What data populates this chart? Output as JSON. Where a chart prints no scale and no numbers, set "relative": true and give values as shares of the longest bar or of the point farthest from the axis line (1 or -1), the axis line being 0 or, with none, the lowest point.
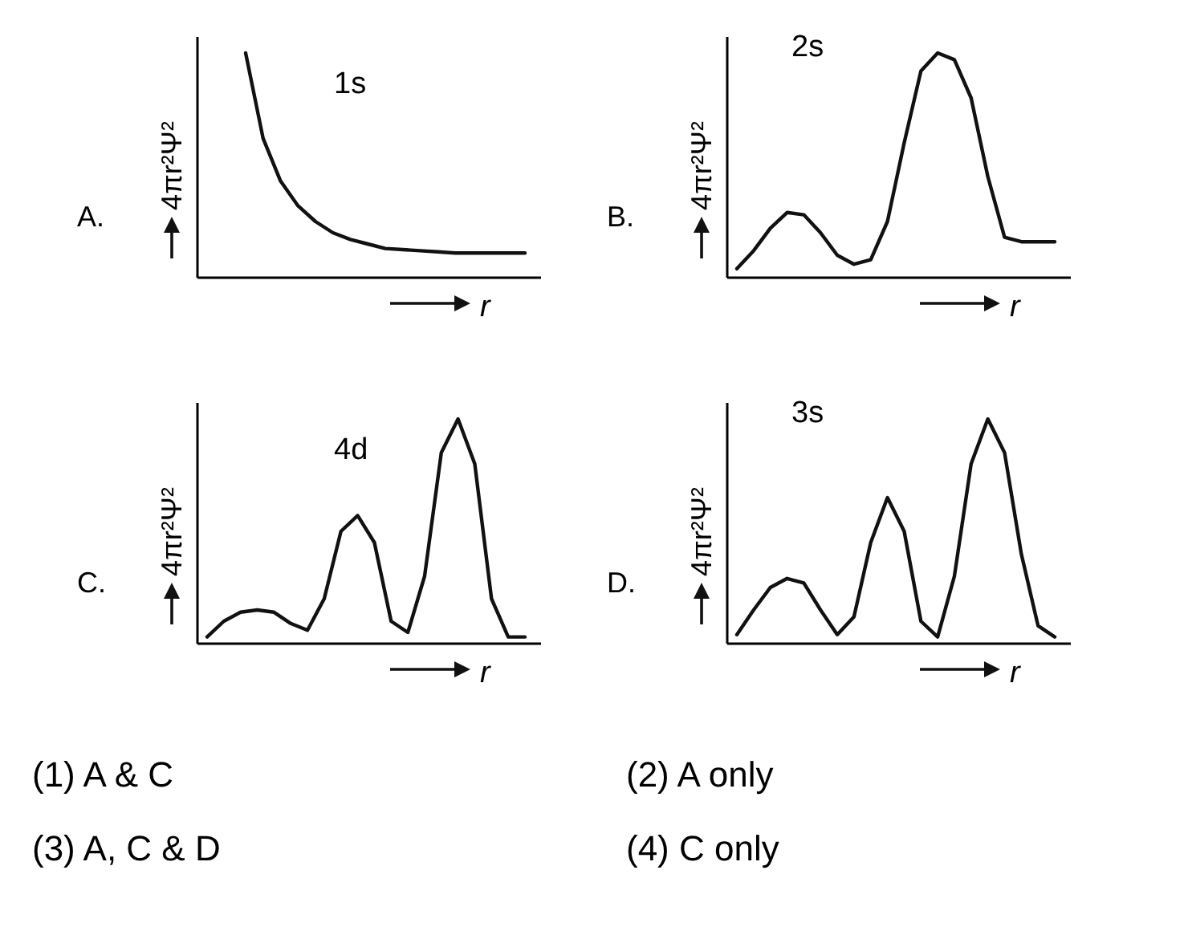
{
  "chart_data": [
    {
      "type": "line",
      "title": "1s",
      "xlabel": "r",
      "ylabel": "4πr²Ψ²",
      "annotations": [
        "A."
      ],
      "relative": true,
      "categories": [
        null,
        null,
        null,
        null,
        null,
        null,
        null,
        null,
        null,
        null,
        null,
        null,
        null,
        null,
        null,
        null,
        null
      ],
      "series": [
        {
          "color": "#111111",
          "values": [
            1,
            0.62,
            0.43,
            0.32,
            0.25,
            0.2,
            0.17,
            0.15,
            0.13,
            0.125,
            0.12,
            0.115,
            0.11,
            0.11,
            0.11,
            0.11,
            0.11
          ]
        }
      ]
    },
    {
      "type": "line",
      "title": "2s",
      "xlabel": "r",
      "ylabel": "4πr²Ψ²",
      "annotations": [
        "B."
      ],
      "relative": true,
      "categories": [
        null,
        null,
        null,
        null,
        null,
        null,
        null,
        null,
        null,
        null,
        null,
        null,
        null,
        null,
        null,
        null,
        null,
        null,
        null,
        null
      ],
      "series": [
        {
          "color": "#111111",
          "values": [
            0.04,
            0.12,
            0.22,
            0.29,
            0.28,
            0.2,
            0.1,
            0.06,
            0.08,
            0.25,
            0.6,
            0.92,
            1,
            0.97,
            0.8,
            0.45,
            0.18,
            0.16,
            0.16,
            0.16
          ]
        }
      ]
    },
    {
      "type": "line",
      "title": "4d",
      "xlabel": "r",
      "ylabel": "4πr²Ψ²",
      "annotations": [
        "C."
      ],
      "relative": true,
      "categories": [
        null,
        null,
        null,
        null,
        null,
        null,
        null,
        null,
        null,
        null,
        null,
        null,
        null,
        null,
        null,
        null,
        null,
        null,
        null,
        null
      ],
      "series": [
        {
          "color": "#111111",
          "values": [
            0.03,
            0.1,
            0.14,
            0.15,
            0.14,
            0.09,
            0.06,
            0.2,
            0.5,
            0.57,
            0.45,
            0.1,
            0.05,
            0.3,
            0.85,
            1,
            0.8,
            0.2,
            0.03,
            0.03
          ]
        }
      ]
    },
    {
      "type": "line",
      "title": "3s",
      "xlabel": "r",
      "ylabel": "4πr²Ψ²",
      "annotations": [
        "D."
      ],
      "relative": true,
      "categories": [
        null,
        null,
        null,
        null,
        null,
        null,
        null,
        null,
        null,
        null,
        null,
        null,
        null,
        null,
        null,
        null,
        null,
        null,
        null,
        null
      ],
      "series": [
        {
          "color": "#111111",
          "values": [
            0.04,
            0.15,
            0.25,
            0.29,
            0.27,
            0.15,
            0.04,
            0.12,
            0.45,
            0.65,
            0.5,
            0.1,
            0.03,
            0.3,
            0.8,
            1,
            0.85,
            0.4,
            0.08,
            0.03
          ]
        }
      ]
    },
    {
      "type": "other",
      "annotations": [
        "(1)  A & C",
        "(2)  A only",
        "(3)  A, C & D",
        "(4)  C only"
      ]
    }
  ]
}
